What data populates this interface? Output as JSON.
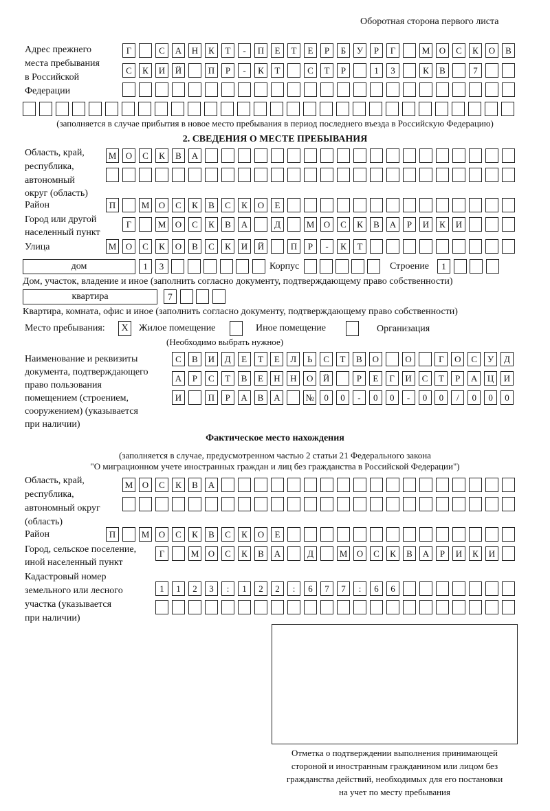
{
  "header": "Оборотная сторона первого листа",
  "previous_address": {
    "label": [
      "Адрес прежнего",
      "места пребывания",
      "в Российской",
      "Федерации"
    ],
    "rows": [
      [
        "Г",
        "",
        "С",
        "А",
        "Н",
        "К",
        "Т",
        "-",
        "П",
        "Е",
        "Т",
        "Е",
        "Р",
        "Б",
        "У",
        "Р",
        "Г",
        "",
        "М",
        "О",
        "С",
        "К",
        "О",
        "В"
      ],
      [
        "С",
        "К",
        "И",
        "Й",
        "",
        "П",
        "Р",
        "-",
        "К",
        "Т",
        "",
        "С",
        "Т",
        "Р",
        "",
        "1",
        "3",
        "",
        "К",
        "В",
        "",
        "7",
        "",
        ""
      ],
      [
        "",
        "",
        "",
        "",
        "",
        "",
        "",
        "",
        "",
        "",
        "",
        "",
        "",
        "",
        "",
        "",
        "",
        "",
        "",
        "",
        "",
        "",
        "",
        ""
      ],
      [
        "",
        "",
        "",
        "",
        "",
        "",
        "",
        "",
        "",
        "",
        "",
        "",
        "",
        "",
        "",
        "",
        "",
        "",
        "",
        "",
        "",
        "",
        "",
        "",
        "",
        "",
        "",
        "",
        "",
        ""
      ]
    ],
    "note": "(заполняется в случае прибытия в новое место пребывания в период последнего въезда в Российскую Федерацию)"
  },
  "section2": {
    "title": "2. СВЕДЕНИЯ О МЕСТЕ ПРЕБЫВАНИЯ",
    "region_label": [
      "Область, край,",
      "республика,",
      "автономный",
      "округ (область)"
    ],
    "region_rows": [
      [
        "М",
        "О",
        "С",
        "К",
        "В",
        "А",
        "",
        "",
        "",
        "",
        "",
        "",
        "",
        "",
        "",
        "",
        "",
        "",
        "",
        "",
        "",
        "",
        "",
        "",
        ""
      ],
      [
        "",
        "",
        "",
        "",
        "",
        "",
        "",
        "",
        "",
        "",
        "",
        "",
        "",
        "",
        "",
        "",
        "",
        "",
        "",
        "",
        "",
        "",
        "",
        "",
        ""
      ]
    ],
    "district_label": "Район",
    "district_row": [
      "П",
      "",
      "М",
      "О",
      "С",
      "К",
      "В",
      "С",
      "К",
      "О",
      "Е",
      "",
      "",
      "",
      "",
      "",
      "",
      "",
      "",
      "",
      "",
      "",
      "",
      "",
      ""
    ],
    "city_label": [
      "Город или другой",
      "населенный пункт"
    ],
    "city_row": [
      "Г",
      "",
      "М",
      "О",
      "С",
      "К",
      "В",
      "А",
      "",
      "Д",
      "",
      "М",
      "О",
      "С",
      "К",
      "В",
      "А",
      "Р",
      "И",
      "К",
      "И",
      "",
      "",
      ""
    ],
    "street_label": "Улица",
    "street_row": [
      "М",
      "О",
      "С",
      "К",
      "О",
      "В",
      "С",
      "К",
      "И",
      "Й",
      "",
      "П",
      "Р",
      "-",
      "К",
      "Т",
      "",
      "",
      "",
      "",
      "",
      "",
      "",
      "",
      ""
    ],
    "house_type": "дом",
    "house_cells": [
      "1",
      "3",
      "",
      "",
      "",
      "",
      "",
      ""
    ],
    "korpus_label": "Корпус",
    "korpus_cells": [
      "",
      "",
      "",
      "",
      ""
    ],
    "building_label": "Строение",
    "building_cells": [
      "1",
      "",
      "",
      ""
    ],
    "house_note": "Дом, участок, владение и иное (заполнить согласно документу, подтверждающему право собственности)",
    "flat_type": "квартира",
    "flat_cells": [
      "7",
      "",
      "",
      ""
    ],
    "flat_note": "Квартира, комната, офис и иное (заполнить согласно документу, подтверждающему право собственности)",
    "stay_label": "Место пребывания:",
    "stay_options": [
      {
        "label": "Жилое помещение",
        "mark": "Х"
      },
      {
        "label": "Иное помещение",
        "mark": ""
      },
      {
        "label": "Организация",
        "mark": ""
      }
    ],
    "stay_note": "(Необходимо выбрать нужное)",
    "doc_label": [
      "Наименование и реквизиты",
      "документа, подтверждающего",
      "право пользования",
      "помещением (строением,",
      "сооружением) (указывается",
      "при наличии)"
    ],
    "doc_rows": [
      [
        "С",
        "В",
        "И",
        "Д",
        "Е",
        "Т",
        "Е",
        "Л",
        "Ь",
        "С",
        "Т",
        "В",
        "О",
        "",
        "О",
        "",
        "Г",
        "О",
        "С",
        "У",
        "Д"
      ],
      [
        "А",
        "Р",
        "С",
        "Т",
        "В",
        "Е",
        "Н",
        "Н",
        "О",
        "Й",
        "",
        "Р",
        "Е",
        "Г",
        "И",
        "С",
        "Т",
        "Р",
        "А",
        "Ц",
        "И"
      ],
      [
        "И",
        "",
        "П",
        "Р",
        "А",
        "В",
        "А",
        "",
        "№",
        "0",
        "0",
        "-",
        "0",
        "0",
        "-",
        "0",
        "0",
        "/",
        "0",
        "0",
        "0"
      ]
    ]
  },
  "actual": {
    "title": "Фактическое место нахождения",
    "note1": "(заполняется в случае, предусмотренном частью 2 статьи 21 Федерального закона",
    "note2": "\"О миграционном учете иностранных граждан и лиц без гражданства в Российской Федерации\")",
    "region_label": [
      "Область, край,",
      "республика,",
      "автономный округ",
      "(область)"
    ],
    "region_rows": [
      [
        "М",
        "О",
        "С",
        "К",
        "В",
        "А",
        "",
        "",
        "",
        "",
        "",
        "",
        "",
        "",
        "",
        "",
        "",
        "",
        "",
        "",
        "",
        "",
        "",
        ""
      ],
      [
        "",
        "",
        "",
        "",
        "",
        "",
        "",
        "",
        "",
        "",
        "",
        "",
        "",
        "",
        "",
        "",
        "",
        "",
        "",
        "",
        "",
        "",
        "",
        ""
      ]
    ],
    "district_label": "Район",
    "district_row": [
      "П",
      "",
      "М",
      "О",
      "С",
      "К",
      "В",
      "С",
      "К",
      "О",
      "Е",
      "",
      "",
      "",
      "",
      "",
      "",
      "",
      "",
      "",
      "",
      "",
      "",
      "",
      ""
    ],
    "city_label": [
      "Город, сельское поселение,",
      "иной населенный пункт"
    ],
    "city_row": [
      "Г",
      "",
      "М",
      "О",
      "С",
      "К",
      "В",
      "А",
      "",
      "Д",
      "",
      "М",
      "О",
      "С",
      "К",
      "В",
      "А",
      "Р",
      "И",
      "К",
      "И",
      ""
    ],
    "cadastral_label": [
      "Кадастровый номер",
      "земельного или лесного",
      "участка (указывается",
      "при наличии)"
    ],
    "cadastral_rows": [
      [
        "1",
        "1",
        "2",
        "3",
        ":",
        "1",
        "2",
        "2",
        ":",
        "6",
        "7",
        "7",
        ":",
        "6",
        "6",
        "",
        "",
        "",
        "",
        "",
        "",
        ""
      ],
      [
        "",
        "",
        "",
        "",
        "",
        "",
        "",
        "",
        "",
        "",
        "",
        "",
        "",
        "",
        "",
        "",
        "",
        "",
        "",
        "",
        "",
        ""
      ]
    ]
  },
  "confirmation": {
    "caption": [
      "Отметка о подтверждении выполнения принимающей",
      "стороной и иностранным гражданином или лицом без",
      "гражданства действий, необходимых для его постановки",
      "на учет по месту пребывания"
    ]
  }
}
